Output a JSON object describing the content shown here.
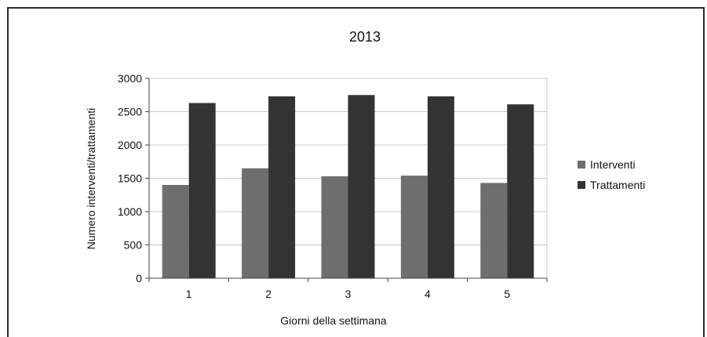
{
  "colors": {
    "interventi": "#6e6e6e",
    "trattamenti": "#333333",
    "grid": "#c8c8c8",
    "axis": "#444444"
  },
  "chart_data": {
    "type": "bar",
    "title": "2013",
    "xlabel": "Giorni della settimana",
    "ylabel": "Numero interventi/trattamenti",
    "categories": [
      "1",
      "2",
      "3",
      "4",
      "5"
    ],
    "ylim": [
      0,
      3000
    ],
    "yticks": [
      "0",
      "500",
      "1000",
      "1500",
      "2000",
      "2500",
      "3000"
    ],
    "grid": true,
    "legend_position": "right",
    "series": [
      {
        "name": "Interventi",
        "values": [
          1400,
          1650,
          1530,
          1540,
          1430
        ]
      },
      {
        "name": "Trattamenti",
        "values": [
          2630,
          2730,
          2750,
          2730,
          2610
        ]
      }
    ]
  }
}
